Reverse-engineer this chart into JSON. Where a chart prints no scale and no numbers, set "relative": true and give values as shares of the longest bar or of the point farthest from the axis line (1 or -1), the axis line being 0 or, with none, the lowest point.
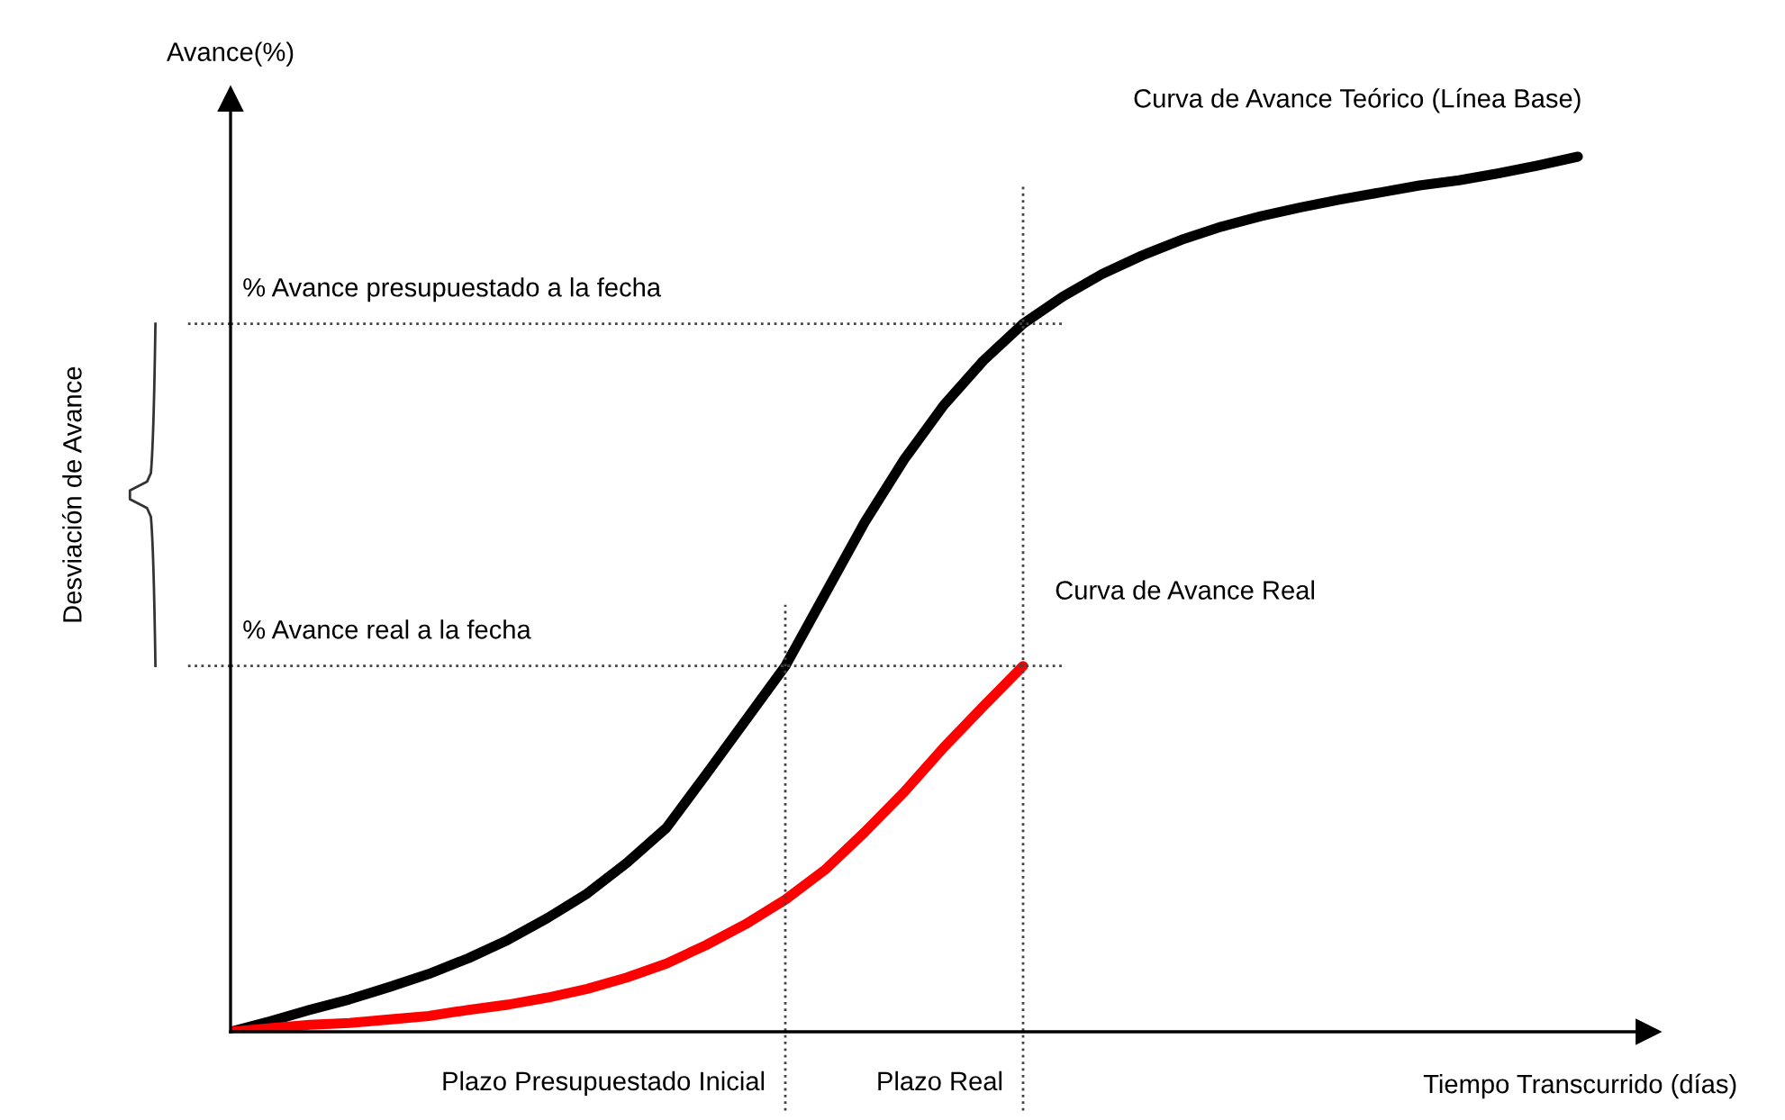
{
  "chart_data": {
    "type": "line",
    "relative": true,
    "xlabel": "Tiempo Transcurrido (días)",
    "ylabel": "Avance(%)",
    "categories": [
      null,
      null,
      null,
      null,
      null,
      null,
      null,
      null,
      null,
      null,
      null,
      null,
      null,
      null,
      null,
      null,
      null,
      null,
      null,
      null,
      null,
      null,
      null,
      null,
      null,
      null,
      null,
      null,
      null,
      null,
      null,
      null,
      null,
      null,
      null
    ],
    "series": [
      {
        "name": "Curva de Avance Teórico (Línea Base)",
        "color": "#000000",
        "values": [
          0,
          0.012,
          0.025,
          0.037,
          0.051,
          0.066,
          0.084,
          0.105,
          0.13,
          0.158,
          0.193,
          0.233,
          0.294,
          0.356,
          0.418,
          0.5,
          0.582,
          0.654,
          0.716,
          0.767,
          0.809,
          0.84,
          0.866,
          0.887,
          0.905,
          0.92,
          0.932,
          0.942,
          0.951,
          0.959,
          0.967,
          0.973,
          0.981,
          0.99,
          1
        ]
      },
      {
        "name": "Curva de Avance Real",
        "color": "#ff0000",
        "values": [
          0,
          0.004,
          0.008,
          0.01,
          0.014,
          0.018,
          0.025,
          0.031,
          0.039,
          0.049,
          0.062,
          0.078,
          0.099,
          0.123,
          0.151,
          0.185,
          0.228,
          0.274,
          0.325,
          0.372,
          0.418,
          null,
          null,
          null,
          null,
          null,
          null,
          null,
          null,
          null,
          null,
          null,
          null,
          null,
          null
        ]
      }
    ],
    "ref_lines": [
      {
        "axis": "y",
        "value": 0.809,
        "label": "% Avance presupuestado a la fecha",
        "line_style": "dotted"
      },
      {
        "axis": "y",
        "value": 0.418,
        "label": "% Avance real a la fecha",
        "line_style": "dotted"
      }
    ],
    "annotations": [
      "Desviación de Avance",
      "Plazo Real",
      "Plazo Presupuestado Inicial"
    ],
    "legend": false
  }
}
